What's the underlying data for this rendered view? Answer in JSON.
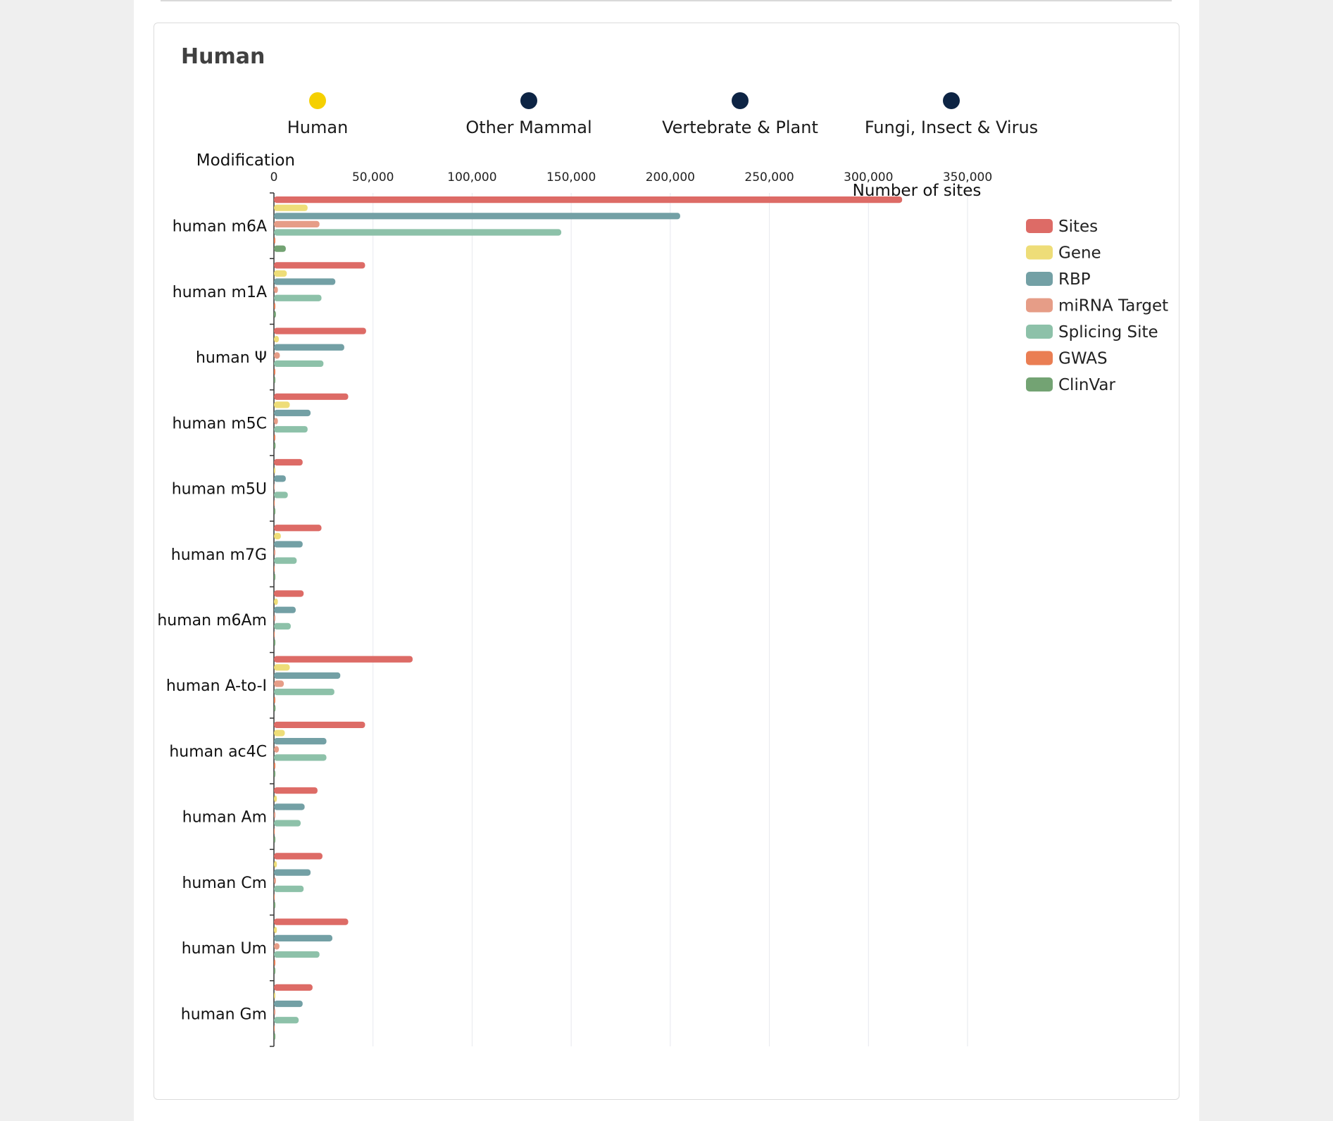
{
  "card": {
    "title": "Human"
  },
  "timeline": {
    "items": [
      {
        "label": "Human",
        "active": true,
        "color": "#f5d000"
      },
      {
        "label": "Other Mammal",
        "active": false,
        "color": "#0d2444"
      },
      {
        "label": "Vertebrate & Plant",
        "active": false,
        "color": "#0d2444"
      },
      {
        "label": "Fungi, Insect & Virus",
        "active": false,
        "color": "#0d2444"
      }
    ]
  },
  "chart_data": {
    "type": "bar",
    "orientation": "horizontal",
    "ylabel": "Modification",
    "xlabel": "Number of sites",
    "xlim": [
      0,
      350000
    ],
    "xticks": [
      "0",
      "50,000",
      "100,000",
      "150,000",
      "200,000",
      "250,000",
      "300,000",
      "350,000"
    ],
    "xtick_values": [
      0,
      50000,
      100000,
      150000,
      200000,
      250000,
      300000,
      350000
    ],
    "grid": true,
    "legend_position": "right",
    "categories": [
      "human m6A",
      "human m1A",
      "human Ψ",
      "human m5C",
      "human m5U",
      "human m7G",
      "human m6Am",
      "human A-to-I",
      "human ac4C",
      "human Am",
      "human Cm",
      "human Um",
      "human Gm"
    ],
    "series": [
      {
        "name": "Sites",
        "color": "#dd6b66",
        "values": [
          317000,
          46000,
          46500,
          37500,
          14500,
          24000,
          15000,
          70000,
          46000,
          22000,
          24500,
          37500,
          19500
        ]
      },
      {
        "name": "Gene",
        "color": "#eedd78",
        "values": [
          17000,
          6500,
          2500,
          8000,
          500,
          3500,
          2000,
          8000,
          5500,
          1500,
          1500,
          1500,
          500
        ]
      },
      {
        "name": "RBP",
        "color": "#73a0a5",
        "values": [
          205000,
          31000,
          35500,
          18500,
          6000,
          14500,
          11000,
          33500,
          26500,
          15500,
          18500,
          29500,
          14500
        ]
      },
      {
        "name": "miRNA Target",
        "color": "#e69d87",
        "values": [
          23000,
          2000,
          3000,
          2000,
          0,
          300,
          300,
          5000,
          2500,
          500,
          1000,
          2800,
          300
        ]
      },
      {
        "name": "Splicing Site",
        "color": "#8dc1a9",
        "values": [
          145000,
          24000,
          25000,
          17000,
          7000,
          11500,
          8500,
          30500,
          26500,
          13500,
          15000,
          23000,
          12500
        ]
      },
      {
        "name": "GWAS",
        "color": "#ea7e53",
        "values": [
          400,
          100,
          100,
          100,
          0,
          0,
          0,
          200,
          100,
          0,
          0,
          100,
          0
        ]
      },
      {
        "name": "ClinVar",
        "color": "#73a373",
        "values": [
          6000,
          1000,
          500,
          800,
          200,
          400,
          200,
          800,
          600,
          200,
          300,
          400,
          200
        ]
      }
    ]
  }
}
